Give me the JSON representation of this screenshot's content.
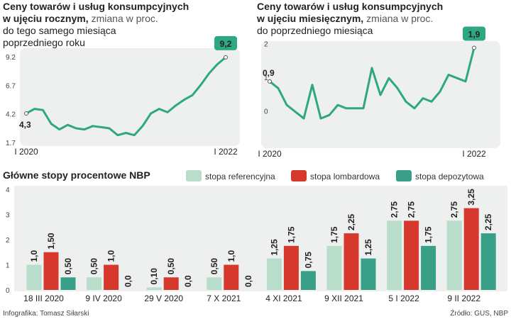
{
  "credit": "Infografika: Tomasz Siłarski",
  "source": "Źródło: GUS, NBP",
  "chart_data": [
    {
      "type": "line",
      "title": [
        "Ceny towarów i usług konsumpcyjnych",
        "w ujęciu rocznym,"
      ],
      "subtitle": [
        "zmiana w proc.",
        "do tego samego miesiąca",
        "poprzedniego roku"
      ],
      "categories": [
        "I 2020",
        null,
        null,
        null,
        null,
        null,
        null,
        null,
        null,
        null,
        null,
        null,
        null,
        null,
        null,
        null,
        null,
        null,
        null,
        null,
        null,
        null,
        null,
        null,
        "I 2022"
      ],
      "values": [
        4.3,
        4.7,
        4.6,
        3.4,
        2.9,
        3.3,
        3.0,
        2.9,
        3.2,
        3.1,
        3.0,
        2.4,
        2.6,
        2.4,
        3.2,
        4.3,
        4.7,
        4.4,
        5.0,
        5.5,
        5.9,
        6.8,
        7.8,
        8.6,
        9.2
      ],
      "value_labels": [
        "4,3",
        null,
        null,
        null,
        null,
        null,
        null,
        null,
        null,
        null,
        null,
        null,
        null,
        null,
        null,
        null,
        null,
        null,
        null,
        null,
        null,
        null,
        null,
        null,
        "9,2"
      ],
      "color": "#2ea783",
      "ylim": [
        1.7,
        10
      ],
      "yticks": [
        1.7,
        4.2,
        6.7,
        9.2
      ]
    },
    {
      "type": "line",
      "title": [
        "Ceny towarów i usług konsumpcyjnych",
        "w ujęciu miesięcznym,"
      ],
      "subtitle": [
        "zmiana w proc.",
        "do poprzedniego miesiąca"
      ],
      "categories": [
        "I 2020",
        null,
        null,
        null,
        null,
        null,
        null,
        null,
        null,
        null,
        null,
        null,
        null,
        null,
        null,
        null,
        null,
        null,
        null,
        null,
        null,
        null,
        null,
        null,
        "I 2022"
      ],
      "values": [
        0.9,
        0.7,
        0.2,
        0.0,
        -0.2,
        0.8,
        -0.2,
        -0.1,
        0.2,
        0.1,
        0.1,
        0.1,
        1.3,
        0.5,
        1.0,
        0.7,
        0.3,
        0.1,
        0.4,
        0.3,
        0.6,
        1.1,
        1.0,
        0.9,
        1.9
      ],
      "value_labels": [
        "0,9",
        null,
        null,
        null,
        null,
        null,
        null,
        null,
        null,
        null,
        null,
        null,
        null,
        null,
        null,
        null,
        null,
        null,
        null,
        null,
        null,
        null,
        null,
        null,
        "1,9"
      ],
      "color": "#2ea783",
      "ylim": [
        -1,
        2.1
      ],
      "yticks": [
        0,
        1,
        2
      ]
    },
    {
      "type": "bar",
      "title": "Główne stopy procentowe NBP",
      "categories": [
        "18 III 2020",
        "9 IV 2020",
        "29 V 2020",
        "7 X 2021",
        "4 XI 2021",
        "9 XII 2021",
        "5 I 2022",
        "9 II 2022"
      ],
      "series": [
        {
          "name": "stopa referencyjna",
          "color": "#b9ddcb",
          "values": [
            1.0,
            0.5,
            0.1,
            0.5,
            1.25,
            1.75,
            2.75,
            2.75
          ],
          "value_labels": [
            "1,0",
            "0,50",
            "0,10",
            "0,50",
            "1,25",
            "1,75",
            "2,75",
            "2,75"
          ]
        },
        {
          "name": "stopa lombardowa",
          "color": "#d6382d",
          "values": [
            1.5,
            1.0,
            0.5,
            1.0,
            1.75,
            2.25,
            2.75,
            3.25
          ],
          "value_labels": [
            "1,50",
            "1,0",
            "0,50",
            "1,0",
            "1,75",
            "2,25",
            "2,75",
            "3,25"
          ]
        },
        {
          "name": "stopa depozytowa",
          "color": "#3a9f87",
          "values": [
            0.5,
            0.0,
            0.0,
            0.0,
            0.75,
            1.25,
            1.75,
            2.25
          ],
          "value_labels": [
            "0,50",
            "0,0",
            "0,0",
            "0,0",
            "0,75",
            "1,25",
            "1,75",
            "2,25"
          ]
        }
      ],
      "ylim": [
        0,
        4
      ],
      "yticks": [
        0,
        1,
        2,
        3,
        4
      ]
    }
  ]
}
